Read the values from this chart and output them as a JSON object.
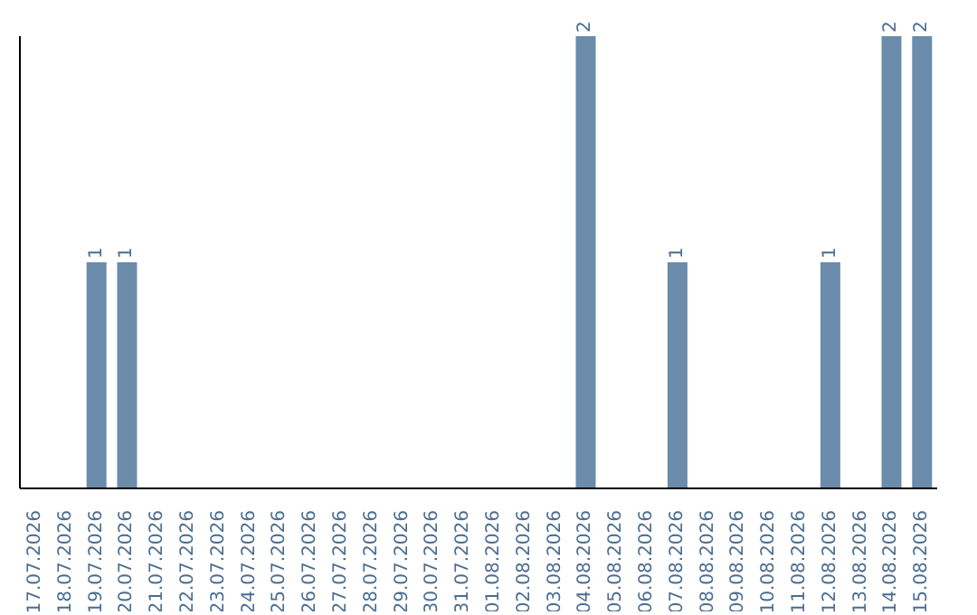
{
  "chart_data": {
    "type": "bar",
    "categories": [
      "17.07.2026",
      "18.07.2026",
      "19.07.2026",
      "20.07.2026",
      "21.07.2026",
      "22.07.2026",
      "23.07.2026",
      "24.07.2026",
      "25.07.2026",
      "26.07.2026",
      "27.07.2026",
      "28.07.2026",
      "29.07.2026",
      "30.07.2026",
      "31.07.2026",
      "01.08.2026",
      "02.08.2026",
      "03.08.2026",
      "04.08.2026",
      "05.08.2026",
      "06.08.2026",
      "07.08.2026",
      "08.08.2026",
      "09.08.2026",
      "10.08.2026",
      "11.08.2026",
      "12.08.2026",
      "13.08.2026",
      "14.08.2026",
      "15.08.2026"
    ],
    "values": [
      0,
      0,
      1,
      1,
      0,
      0,
      0,
      0,
      0,
      0,
      0,
      0,
      0,
      0,
      0,
      0,
      0,
      0,
      2,
      0,
      0,
      1,
      0,
      0,
      0,
      0,
      1,
      0,
      2,
      2
    ],
    "value_labels": [
      null,
      null,
      "1",
      "1",
      null,
      null,
      null,
      null,
      null,
      null,
      null,
      null,
      null,
      null,
      null,
      null,
      null,
      null,
      "2",
      null,
      null,
      "1",
      null,
      null,
      null,
      null,
      "1",
      null,
      "2",
      "2"
    ],
    "color": "#6b8cab",
    "ylim": [
      0,
      2
    ]
  }
}
